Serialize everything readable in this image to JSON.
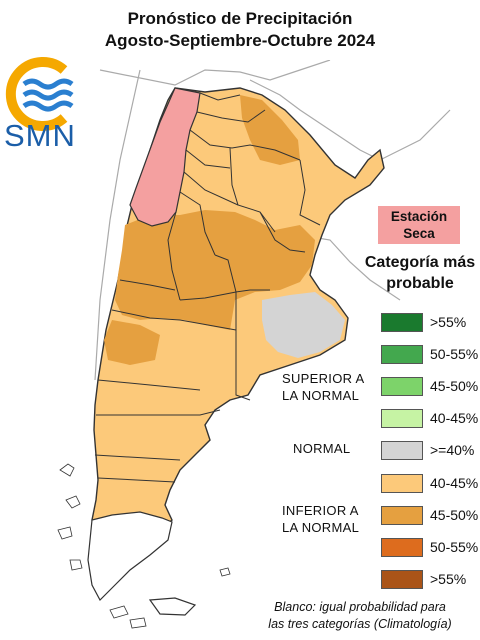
{
  "header": {
    "title_line1": "Pronóstico de Precipitación",
    "title_line2": "Agosto-Septiembre-Octubre 2024"
  },
  "logo": {
    "text": "SMN",
    "icon": "smn-logo-icon"
  },
  "dry_season": {
    "line1": "Estación",
    "line2": "Seca",
    "color": "#f4a0a0"
  },
  "legend": {
    "title_line1": "Categoría más",
    "title_line2": "probable",
    "items": [
      {
        "label": ">55%",
        "color": "#1a7a2e"
      },
      {
        "label": "50-55%",
        "color": "#43a84e"
      },
      {
        "label": "45-50%",
        "color": "#7dd36a"
      },
      {
        "label": "40-45%",
        "color": "#c6f3a4"
      },
      {
        "label": ">=40%",
        "color": "#d4d4d4"
      },
      {
        "label": "40-45%",
        "color": "#fcc97a"
      },
      {
        "label": "45-50%",
        "color": "#e5a040"
      },
      {
        "label": "50-55%",
        "color": "#dd6c1e"
      },
      {
        "label": ">55%",
        "color": "#aa5418"
      }
    ],
    "groups": {
      "superior_line1": "SUPERIOR A",
      "superior_line2": "LA NORMAL",
      "normal": "NORMAL",
      "inferior_line1": "INFERIOR A",
      "inferior_line2": "LA NORMAL"
    }
  },
  "footnote": {
    "line1": "Blanco: igual probabilidad para",
    "line2": "las tres categorías (Climatología)"
  },
  "map_colors": {
    "light_orange": "#fcc97a",
    "dark_orange": "#e5a040",
    "normal_gray": "#d4d4d4",
    "dry_pink": "#f4a0a0",
    "white": "#ffffff",
    "border": "#333333",
    "neighbor_border": "#aaaaaa"
  }
}
